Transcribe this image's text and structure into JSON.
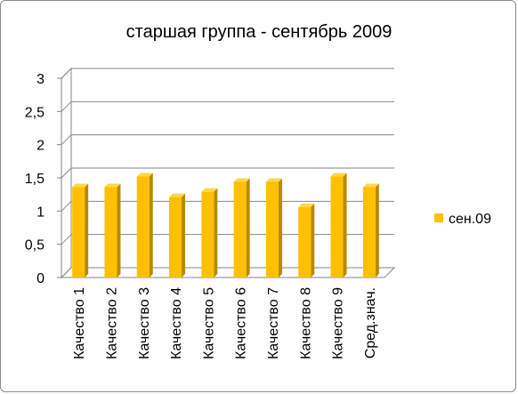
{
  "chart_data": {
    "type": "bar",
    "title": "старшая группа - сентябрь 2009",
    "categories": [
      "Качество 1",
      "Качество 2",
      "Качество 3",
      "Качество 4",
      "Качество 5",
      "Качество 6",
      "Качество 7",
      "Качество 8",
      "Качество 9",
      "Сред.знач."
    ],
    "series": [
      {
        "name": "сен.09",
        "values": [
          1.36,
          1.36,
          1.52,
          1.21,
          1.29,
          1.44,
          1.44,
          1.06,
          1.52,
          1.36
        ]
      }
    ],
    "ylim": [
      0,
      3
    ],
    "yticks": [
      {
        "value": 0,
        "label": "0"
      },
      {
        "value": 0.5,
        "label": "0,5"
      },
      {
        "value": 1,
        "label": "1"
      },
      {
        "value": 1.5,
        "label": "1,5"
      },
      {
        "value": 2,
        "label": "2"
      },
      {
        "value": 2.5,
        "label": "2,5"
      },
      {
        "value": 3,
        "label": "3"
      }
    ],
    "xlabel": "",
    "ylabel": "",
    "grid": true,
    "legend_position": "right",
    "colors": {
      "bar_front": "#ffc000",
      "bar_side": "#b88a00",
      "bar_top": "#ffd54a",
      "grid": "#868686",
      "wall": "#ffffff"
    }
  }
}
